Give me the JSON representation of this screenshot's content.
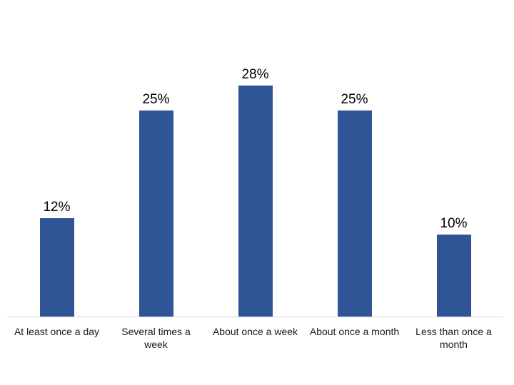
{
  "chart_data": {
    "type": "bar",
    "categories": [
      "At least once a day",
      "Several times a week",
      "About once a week",
      "About once a month",
      "Less than once a month"
    ],
    "values": [
      12,
      25,
      28,
      25,
      10
    ],
    "data_labels": [
      "12%",
      "25%",
      "28%",
      "25%",
      "10%"
    ],
    "title": "",
    "xlabel": "",
    "ylabel": "",
    "ylim": [
      0,
      30
    ],
    "grid": false,
    "legend": "none",
    "bar_color": "#2F5597",
    "axis_line_color": "#D9D9D9",
    "data_label_color": "#000000",
    "category_label_color": "#1a1a1a"
  }
}
